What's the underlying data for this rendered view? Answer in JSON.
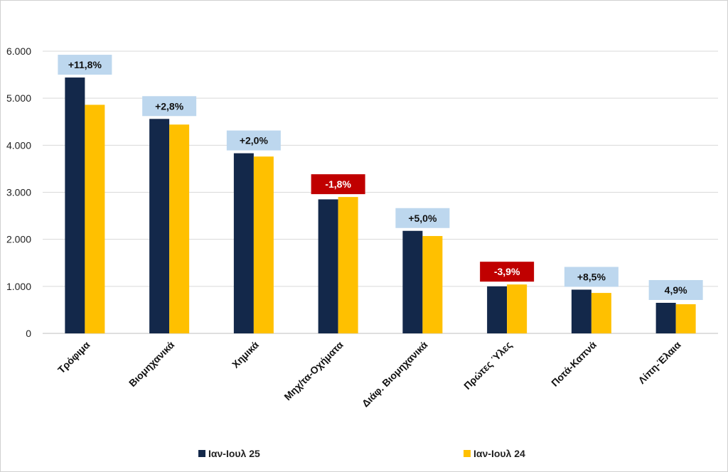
{
  "chart_data": {
    "type": "bar",
    "title": "",
    "xlabel": "",
    "ylabel": "",
    "ylim": [
      0,
      6000
    ],
    "yticks": [
      0,
      1000,
      2000,
      3000,
      4000,
      5000,
      6000
    ],
    "ytick_labels": [
      "0",
      "1.000",
      "2.000",
      "3.000",
      "4.000",
      "5.000",
      "6.000"
    ],
    "grid": true,
    "legend_position": "bottom",
    "categories": [
      "Τρόφιμα",
      "Βιομηχανικά",
      "Χημικά",
      "Μηχ/τα-Οχήματα",
      "Διάφ. Βιομηχανικά",
      "Πρώτες Ύλες",
      "Ποτά-Καπνά",
      "Λίπη-Έλαια"
    ],
    "series": [
      {
        "name": "Ιαν-Ιουλ 25",
        "color": "#13284a",
        "values": [
          5440,
          4560,
          3830,
          2850,
          2180,
          1000,
          930,
          650
        ]
      },
      {
        "name": "Ιαν-Ιουλ 24",
        "color": "#ffc000",
        "values": [
          4860,
          4440,
          3760,
          2900,
          2070,
          1040,
          860,
          620
        ]
      }
    ],
    "change_labels": [
      {
        "text": "+11,8%",
        "positive": true
      },
      {
        "text": "+2,8%",
        "positive": true
      },
      {
        "text": "+2,0%",
        "positive": true
      },
      {
        "text": "-1,8%",
        "positive": false
      },
      {
        "text": "+5,0%",
        "positive": true
      },
      {
        "text": "-3,9%",
        "positive": false
      },
      {
        "text": "+8,5%",
        "positive": true
      },
      {
        "text": "4,9%",
        "positive": true
      }
    ],
    "label_colors": {
      "positive_bg": "#bdd7ee",
      "positive_text": "#111111",
      "negative_bg": "#c00000",
      "negative_text": "#ffffff"
    }
  }
}
